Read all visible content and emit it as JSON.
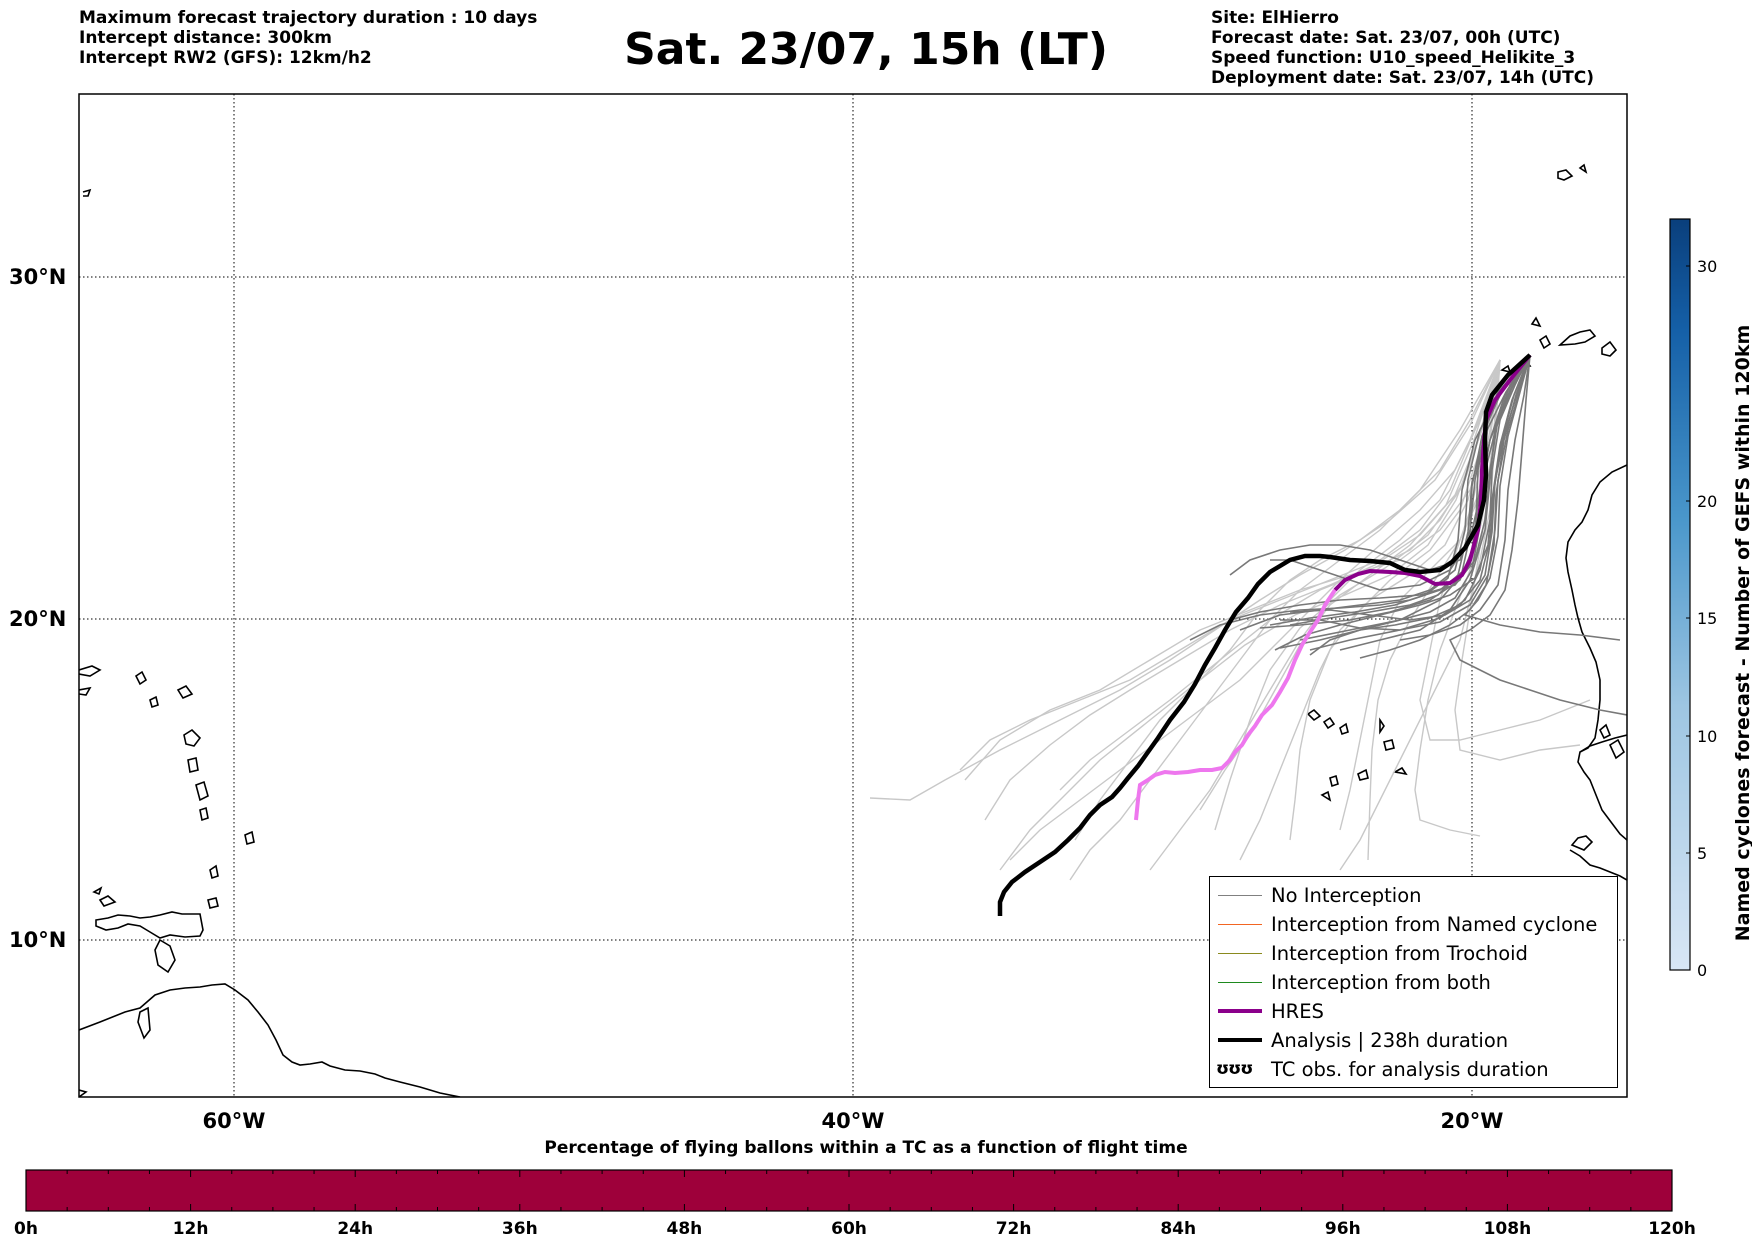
{
  "header_left": [
    "Maximum forecast trajectory duration : 10 days",
    "Intercept distance: 300km",
    "Intercept RW2 (GFS):  12km/h2"
  ],
  "title": "Sat. 23/07, 15h (LT)",
  "header_right": [
    "Site: ElHierro",
    "Forecast date: Sat. 23/07, 00h (UTC)",
    "Speed function: U10_speed_Helikite_3",
    "Deployment date: Sat. 23/07, 14h (UTC)"
  ],
  "map": {
    "lon_range": [
      -65,
      -15
    ],
    "lat_range": [
      5,
      35
    ],
    "lat_ticks": [
      "30°N",
      "20°N",
      "10°N"
    ],
    "lon_ticks": [
      "60°W",
      "40°W",
      "20°W"
    ],
    "grid": "dotted"
  },
  "legend": {
    "items": [
      {
        "label": "No Interception",
        "color": "#808080"
      },
      {
        "label": "Interception from Named cyclone",
        "color": "#f26522"
      },
      {
        "label": "Interception from Trochoid",
        "color": "#8a8a1e"
      },
      {
        "label": "Interception from both",
        "color": "#1e8a1e"
      },
      {
        "label": "HRES",
        "color": "#8b008b"
      },
      {
        "label": "Analysis | 238h duration",
        "color": "#000000"
      },
      {
        "label": "TC obs. for analysis duration",
        "color": "#000000"
      }
    ],
    "tc_symbol": "ʊʊʊ"
  },
  "colorbar": {
    "label": "Named cyclones forecast - Number of GEFS within 120km",
    "ticks": [
      "0",
      "5",
      "10",
      "15",
      "20",
      "30"
    ],
    "range": [
      0,
      32
    ]
  },
  "flight_bar": {
    "title": "Percentage of flying ballons within a TC as a function of flight time",
    "ticks": [
      "0h",
      "12h",
      "24h",
      "36h",
      "48h",
      "60h",
      "72h",
      "84h",
      "96h",
      "108h",
      "120h"
    ],
    "color": "#9e003a"
  }
}
